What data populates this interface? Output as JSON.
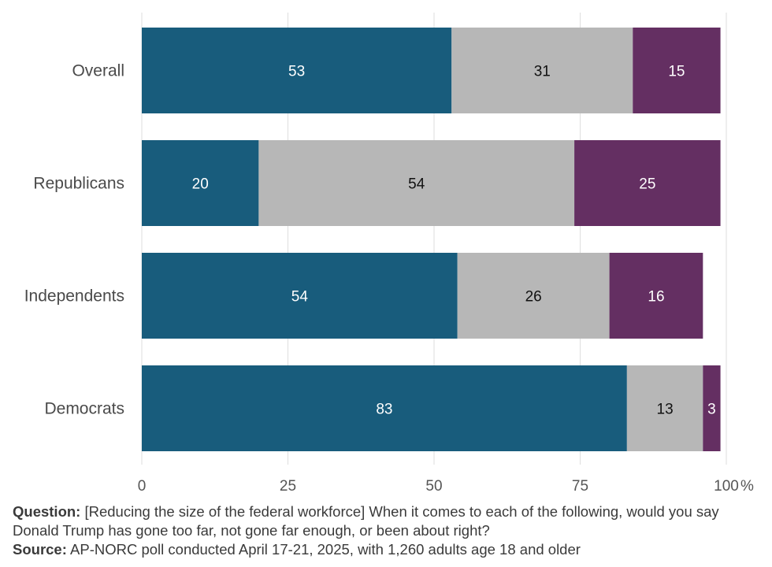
{
  "chart_data": {
    "type": "bar",
    "orientation": "horizontal",
    "stacked": true,
    "categories": [
      "Overall",
      "Republicans",
      "Independents",
      "Democrats"
    ],
    "series": [
      {
        "values": [
          53,
          20,
          54,
          83
        ],
        "color": "#185c7c",
        "label_color": "#ffffff"
      },
      {
        "values": [
          31,
          54,
          26,
          13
        ],
        "color": "#b7b7b7",
        "label_color": "#111111"
      },
      {
        "values": [
          15,
          25,
          16,
          3
        ],
        "color": "#642f62",
        "label_color": "#ffffff"
      }
    ],
    "xlim": [
      0,
      100
    ],
    "x_ticks": [
      "0",
      "25",
      "50",
      "75",
      "100"
    ],
    "x_unit": "%",
    "grid": true,
    "legend": "none"
  },
  "footer": {
    "question_label": "Question:",
    "question_text": "[Reducing the size of the federal workforce] When it comes to each of the following, would you say Donald Trump has gone too far, not gone far enough, or been about right?",
    "source_label": "Source:",
    "source_text": "AP-NORC poll conducted April 17-21, 2025, with 1,260 adults age 18 and older"
  }
}
